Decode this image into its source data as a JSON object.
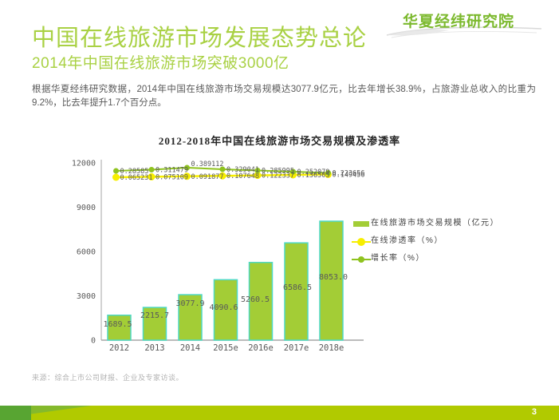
{
  "page": {
    "logo": "华夏经纬研究院",
    "title": "中国在线旅游市场发展态势总论",
    "subtitle": "2014年中国在线旅游市场突破3000亿",
    "body": "根据华夏经纬研究数据，2014年中国在线旅游市场交易规模达3077.9亿元，比去年增长38.9%，占旅游业总收入的比重为9.2%，比去年提升1.7个百分点。",
    "source": "来源：综合上市公司财报、企业及专家访谈。",
    "page_number": "3"
  },
  "chart_data": {
    "type": "bar",
    "title": "2012-2018年中国在线旅游市场交易规模及渗透率",
    "categories": [
      "2012",
      "2013",
      "2014",
      "2015e",
      "2016e",
      "2017e",
      "2018e"
    ],
    "series": [
      {
        "name": "在线旅游市场交易规模（亿元）",
        "type": "bar",
        "values": [
          1689.5,
          2215.7,
          3077.9,
          4090.6,
          5260.5,
          6586.5,
          8053.0
        ],
        "labels": [
          "1689.5",
          "2215.7",
          "3077.9",
          "4090.6",
          "5260.5",
          "6586.5",
          "8053.0"
        ],
        "color": "#a3cd36",
        "border_color": "#4ed9c5"
      },
      {
        "name": "在线渗透率（%）",
        "type": "line",
        "values": [
          0.065231,
          0.075109,
          0.091877,
          0.107648,
          0.122337,
          0.136505,
          0.149456
        ],
        "labels": [
          "0.065231",
          "0.075109",
          "0.091877",
          "0.107648",
          "0.122337",
          "0.136505",
          "0.149456"
        ],
        "color": "#f7ee00"
      },
      {
        "name": "增长率（%）",
        "type": "line",
        "values": [
          0.28585,
          0.311479,
          0.389112,
          0.329041,
          0.285995,
          0.252079,
          0.223656
        ],
        "labels": [
          "0.28585",
          "0.311479",
          "0.389112",
          "0.329041",
          "0.285995",
          "0.252079",
          "0.223656"
        ],
        "color": "#8fc31f"
      }
    ],
    "y_axis": {
      "ticks": [
        "0",
        "3000",
        "6000",
        "9000",
        "12000"
      ],
      "min": 0,
      "max": 12000
    },
    "grid": false,
    "legend_position": "right"
  }
}
